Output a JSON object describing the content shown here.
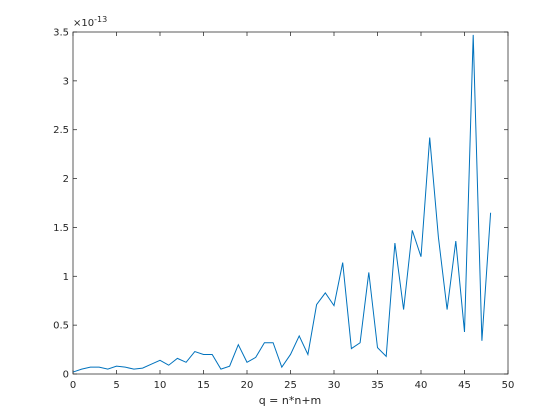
{
  "chart_data": {
    "type": "line",
    "title": "",
    "xlabel": "q = n*n+m",
    "ylabel": "",
    "y_exponent_label": "×10",
    "y_exponent_power": "-13",
    "xlim": [
      0,
      50
    ],
    "ylim": [
      0,
      3.5
    ],
    "x_ticks": [
      0,
      5,
      10,
      15,
      20,
      25,
      30,
      35,
      40,
      45,
      50
    ],
    "y_ticks": [
      0,
      0.5,
      1,
      1.5,
      2,
      2.5,
      3,
      3.5
    ],
    "x_tick_labels": [
      "0",
      "5",
      "10",
      "15",
      "20",
      "25",
      "30",
      "35",
      "40",
      "45",
      "50"
    ],
    "y_tick_labels": [
      "0",
      "0.5",
      "1",
      "1.5",
      "2",
      "2.5",
      "3",
      "3.5"
    ],
    "grid": false,
    "line_color": "#0072bd",
    "series": [
      {
        "x": [
          0,
          1,
          2,
          3,
          4,
          5,
          6,
          7,
          8,
          9,
          10,
          11,
          12,
          13,
          14,
          15,
          16,
          17,
          18,
          19,
          20,
          21,
          22,
          23,
          24,
          25,
          26,
          27,
          28,
          29,
          30,
          31,
          32,
          33,
          34,
          35,
          36,
          37,
          38,
          39,
          40,
          41,
          42,
          43,
          44,
          45,
          46,
          47,
          48
        ],
        "values": [
          0.02,
          0.05,
          0.07,
          0.07,
          0.05,
          0.08,
          0.07,
          0.05,
          0.06,
          0.1,
          0.14,
          0.09,
          0.16,
          0.12,
          0.23,
          0.2,
          0.2,
          0.05,
          0.08,
          0.3,
          0.12,
          0.17,
          0.32,
          0.32,
          0.07,
          0.2,
          0.39,
          0.2,
          0.71,
          0.83,
          0.7,
          1.14,
          0.26,
          0.32,
          1.04,
          0.27,
          0.18,
          1.34,
          0.66,
          1.47,
          1.2,
          2.42,
          1.4,
          0.66,
          1.36,
          0.43,
          3.47,
          0.34,
          1.65
        ]
      }
    ]
  }
}
